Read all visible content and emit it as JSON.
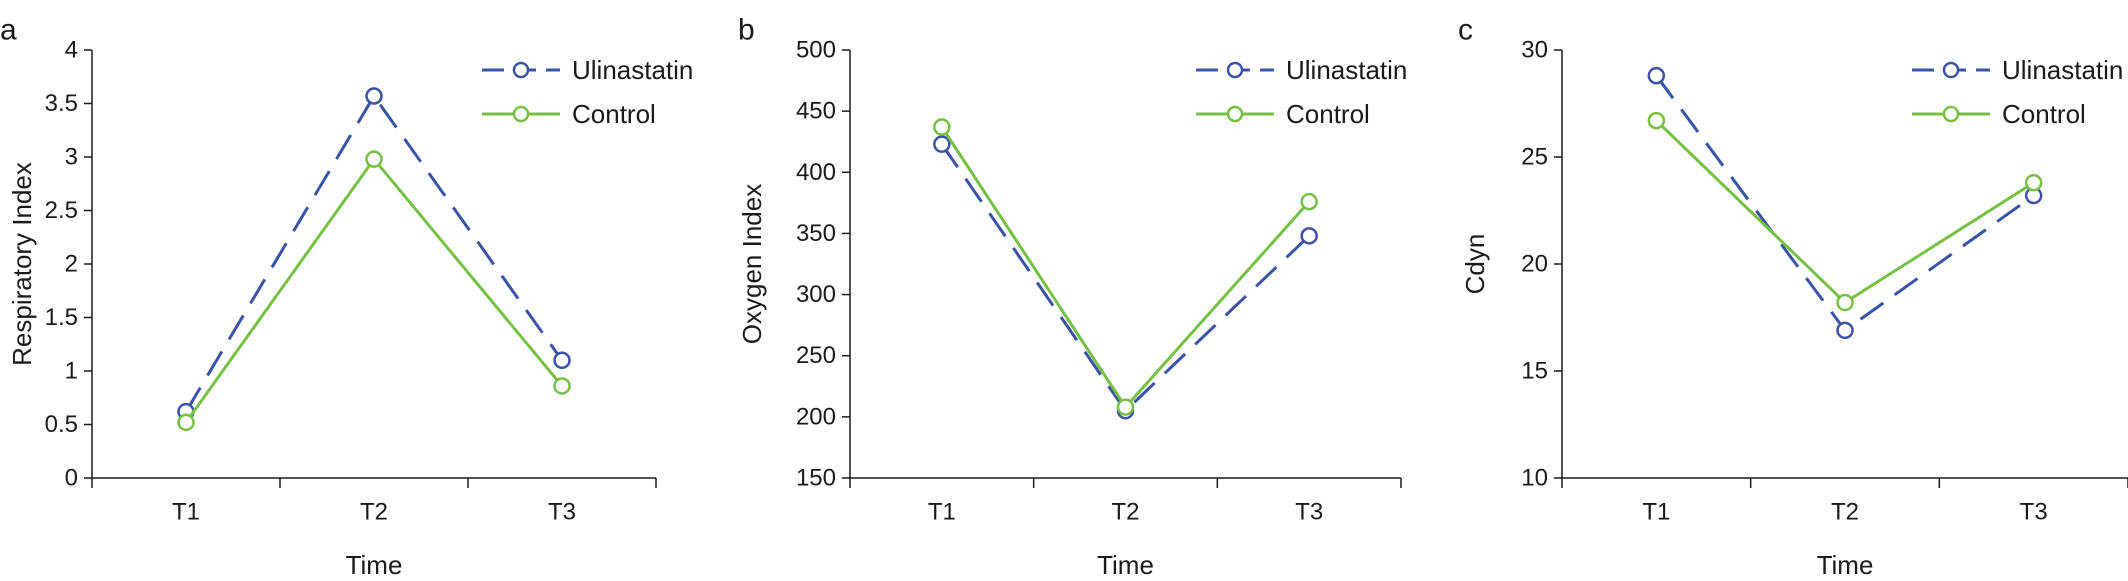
{
  "colors": {
    "ulinastatin": "#3a53a4",
    "control": "#76c043",
    "axis": "#1a1a1a"
  },
  "chart_data": [
    {
      "panel": "a",
      "type": "line",
      "categories": [
        "T1",
        "T2",
        "T3"
      ],
      "xlabel": "Time",
      "ylabel": "Respiratory Index",
      "ylim": [
        0,
        4
      ],
      "yticks": [
        0,
        0.5,
        1,
        1.5,
        2,
        2.5,
        3,
        3.5,
        4
      ],
      "legend_position": "top-right",
      "series": [
        {
          "name": "Ulinastatin",
          "style": "dashed",
          "values": [
            0.62,
            3.57,
            1.1
          ]
        },
        {
          "name": "Control",
          "style": "solid",
          "values": [
            0.52,
            2.98,
            0.86
          ]
        }
      ]
    },
    {
      "panel": "b",
      "type": "line",
      "categories": [
        "T1",
        "T2",
        "T3"
      ],
      "xlabel": "Time",
      "ylabel": "Oxygen Index",
      "ylim": [
        150,
        500
      ],
      "yticks": [
        150,
        200,
        250,
        300,
        350,
        400,
        450,
        500
      ],
      "legend_position": "top-right",
      "series": [
        {
          "name": "Ulinastatin",
          "style": "dashed",
          "values": [
            423,
            205,
            348
          ]
        },
        {
          "name": "Control",
          "style": "solid",
          "values": [
            437,
            208,
            376
          ]
        }
      ]
    },
    {
      "panel": "c",
      "type": "line",
      "categories": [
        "T1",
        "T2",
        "T3"
      ],
      "xlabel": "Time",
      "ylabel": "Cdyn",
      "ylim": [
        10,
        30
      ],
      "yticks": [
        10,
        15,
        20,
        25,
        30
      ],
      "legend_position": "top-right",
      "series": [
        {
          "name": "Ulinastatin",
          "style": "dashed",
          "values": [
            28.8,
            16.9,
            23.2
          ]
        },
        {
          "name": "Control",
          "style": "solid",
          "values": [
            26.7,
            18.2,
            23.8
          ]
        }
      ]
    }
  ]
}
